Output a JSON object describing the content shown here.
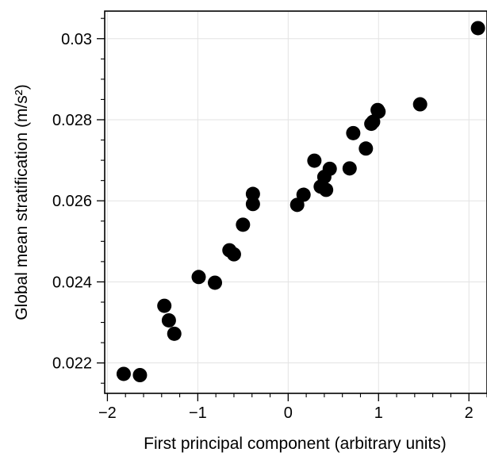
{
  "chart_data": {
    "type": "scatter",
    "xlabel": "First principal component (arbitrary units)",
    "ylabel": "Global mean stratification (m/s²)",
    "xlim": [
      -2.03,
      2.2
    ],
    "ylim": [
      0.02125,
      0.03068
    ],
    "x_ticks": [
      -2,
      -1,
      0,
      1,
      2
    ],
    "x_tick_labels": [
      "−2",
      "−1",
      "0",
      "1",
      "2"
    ],
    "y_ticks": [
      0.022,
      0.024,
      0.026,
      0.028,
      0.03
    ],
    "y_tick_labels": [
      "0.022",
      "0.024",
      "0.026",
      "0.028",
      "0.03"
    ],
    "grid": true,
    "legend": "none",
    "point_color": "#000000",
    "points": [
      {
        "x": -1.82,
        "y": 0.02173
      },
      {
        "x": -1.64,
        "y": 0.0217
      },
      {
        "x": -1.37,
        "y": 0.02341
      },
      {
        "x": -1.32,
        "y": 0.02305
      },
      {
        "x": -1.26,
        "y": 0.02272
      },
      {
        "x": -0.99,
        "y": 0.02412
      },
      {
        "x": -0.81,
        "y": 0.02398
      },
      {
        "x": -0.65,
        "y": 0.02478
      },
      {
        "x": -0.6,
        "y": 0.02468
      },
      {
        "x": -0.5,
        "y": 0.02541
      },
      {
        "x": -0.39,
        "y": 0.02592
      },
      {
        "x": -0.39,
        "y": 0.02617
      },
      {
        "x": 0.1,
        "y": 0.0259
      },
      {
        "x": 0.17,
        "y": 0.02615
      },
      {
        "x": 0.29,
        "y": 0.02699
      },
      {
        "x": 0.36,
        "y": 0.02635
      },
      {
        "x": 0.4,
        "y": 0.02659
      },
      {
        "x": 0.42,
        "y": 0.02627
      },
      {
        "x": 0.46,
        "y": 0.02679
      },
      {
        "x": 0.68,
        "y": 0.0268
      },
      {
        "x": 0.72,
        "y": 0.02767
      },
      {
        "x": 0.86,
        "y": 0.02729
      },
      {
        "x": 0.92,
        "y": 0.0279
      },
      {
        "x": 0.94,
        "y": 0.02795
      },
      {
        "x": 0.99,
        "y": 0.02824
      },
      {
        "x": 1.0,
        "y": 0.0282
      },
      {
        "x": 1.46,
        "y": 0.02838
      },
      {
        "x": 2.1,
        "y": 0.03026
      }
    ]
  }
}
